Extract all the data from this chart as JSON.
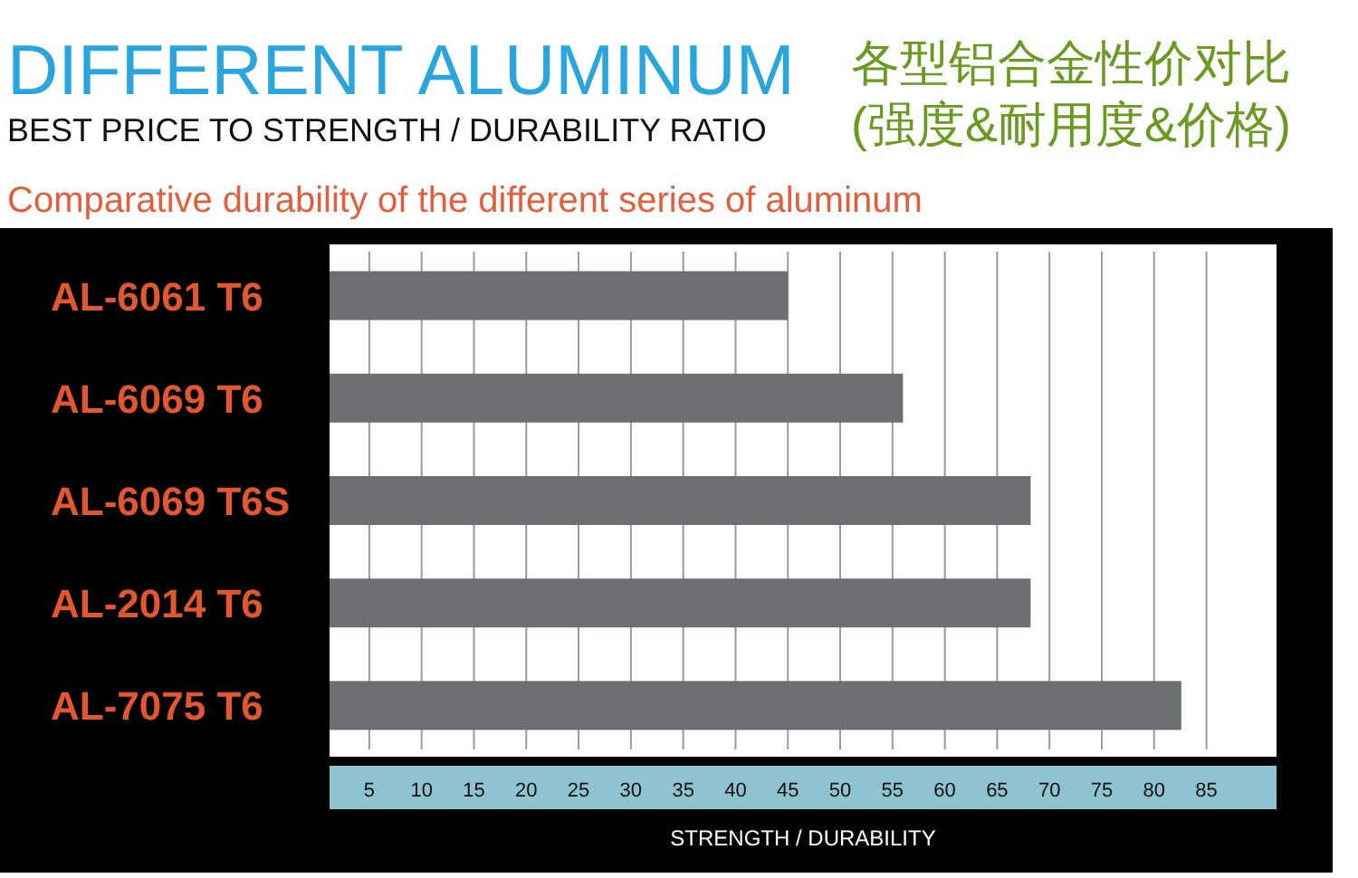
{
  "chart_data": {
    "type": "bar",
    "orientation": "horizontal",
    "title": "DIFFERENT ALUMINUM",
    "subtitle": "BEST PRICE TO STRENGTH / DURABILITY RATIO",
    "annotations": [
      "各型铝合金性价对比",
      "(强度&耐用度&价格)",
      "Comparative durability of the different series of aluminum"
    ],
    "xlabel": "STRENGTH / DURABILITY",
    "categories": [
      "AL-6061 T6",
      "AL-6069 T6",
      "AL-6069 T6S",
      "AL-2014 T6",
      "AL-7075 T6"
    ],
    "values": [
      45,
      56,
      68.2,
      68.2,
      82.6
    ],
    "color": "#6d6e71",
    "xlim": [
      1.2,
      91.7
    ],
    "xticks": [
      5,
      10,
      15,
      20,
      25,
      30,
      35,
      40,
      45,
      50,
      55,
      60,
      65,
      70,
      75,
      80,
      85
    ],
    "grid": "x"
  }
}
